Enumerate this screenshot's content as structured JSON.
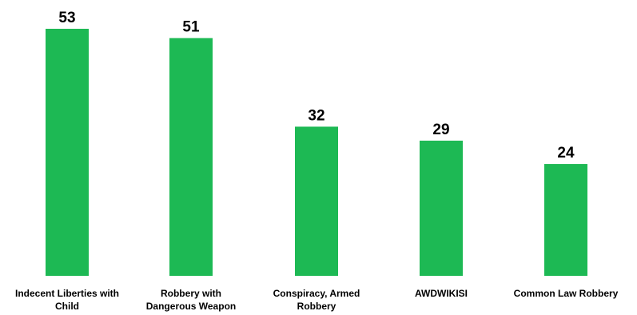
{
  "chart_data": {
    "type": "bar",
    "categories": [
      [
        "Indecent Liberties with",
        "Child"
      ],
      [
        "Robbery with",
        "Dangerous Weapon"
      ],
      [
        "Conspiracy, Armed",
        "Robbery"
      ],
      [
        "AWDWIKISI"
      ],
      [
        "Common Law Robbery"
      ]
    ],
    "values": [
      53,
      51,
      32,
      29,
      24
    ],
    "value_labels": [
      "53",
      "51",
      "32",
      "29",
      "24"
    ],
    "bar_color": "#1DB954",
    "ylim": [
      0,
      53
    ],
    "grid": false,
    "legend": "none",
    "data_labels": "above-bars"
  }
}
